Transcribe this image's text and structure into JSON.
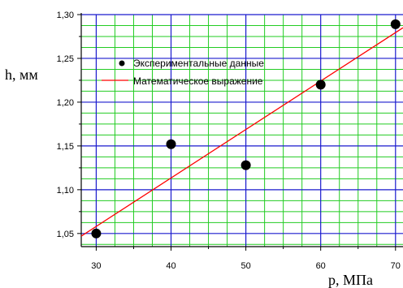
{
  "chart_data": {
    "type": "scatter",
    "title": "",
    "xlabel": "p, МПа",
    "ylabel": "h, мм",
    "xlim": [
      28,
      71
    ],
    "ylim": [
      1.035,
      1.3
    ],
    "xticks": [
      30,
      40,
      50,
      60,
      70
    ],
    "xtick_labels": [
      "30",
      "40",
      "50",
      "60",
      "70"
    ],
    "yticks": [
      1.05,
      1.1,
      1.15,
      1.2,
      1.25,
      1.3
    ],
    "ytick_labels": [
      "1,05",
      "1,10",
      "1,15",
      "1,20",
      "1,25",
      "1,30"
    ],
    "grid": true,
    "legend_position": "top-right",
    "series": [
      {
        "name": "Экспериментальные данные",
        "kind": "scatter",
        "color": "#000000",
        "x": [
          30,
          40,
          50,
          60,
          70
        ],
        "y": [
          1.05,
          1.152,
          1.128,
          1.22,
          1.289
        ]
      },
      {
        "name": "Математическое выражение",
        "kind": "line",
        "color": "#ff0000",
        "x": [
          28,
          71
        ],
        "y": [
          1.047,
          1.285
        ]
      }
    ],
    "colors": {
      "major_grid": "#1a1acd",
      "minor_grid": "#22cc22",
      "axis": "#000000"
    }
  }
}
